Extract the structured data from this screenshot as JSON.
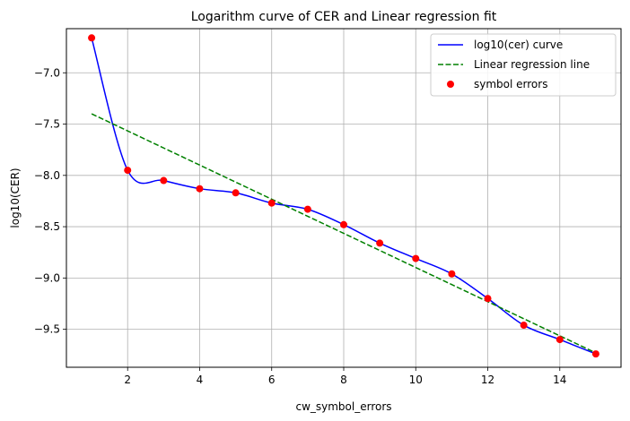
{
  "chart_data": {
    "type": "line",
    "title": "Logarithm curve of CER and Linear regression fit",
    "xlabel": "cw_symbol_errors",
    "ylabel": "log10(CER)",
    "xlim": [
      0.3,
      15.7
    ],
    "ylim": [
      -9.87,
      -6.57
    ],
    "x_ticks": [
      2,
      4,
      6,
      8,
      10,
      12,
      14
    ],
    "x_tick_labels": [
      "2",
      "4",
      "6",
      "8",
      "10",
      "12",
      "14"
    ],
    "y_ticks": [
      -9.5,
      -9.0,
      -8.5,
      -8.0,
      -7.5,
      -7.0
    ],
    "y_tick_labels": [
      "−9.5",
      "−9.0",
      "−8.5",
      "−8.0",
      "−7.5",
      "−7.0"
    ],
    "grid": true,
    "legend_position": "top-right",
    "series": [
      {
        "name": "log10(cer) curve",
        "kind": "smooth-line",
        "color": "#0000ff",
        "x": [
          1,
          2,
          3,
          4,
          5,
          6,
          7,
          8,
          9,
          10,
          11,
          12,
          13,
          14,
          15
        ],
        "y": [
          -6.66,
          -7.95,
          -8.05,
          -8.13,
          -8.17,
          -8.27,
          -8.33,
          -8.48,
          -8.66,
          -8.81,
          -8.96,
          -9.2,
          -9.46,
          -9.6,
          -9.74
        ]
      },
      {
        "name": "Linear regression line",
        "kind": "dashed-line",
        "color": "#008000",
        "x": [
          1,
          15
        ],
        "y": [
          -7.4,
          -9.73
        ]
      },
      {
        "name": "symbol errors",
        "kind": "scatter",
        "color": "#ff0000",
        "x": [
          1,
          2,
          3,
          4,
          5,
          6,
          7,
          8,
          9,
          10,
          11,
          12,
          13,
          14,
          15
        ],
        "y": [
          -6.66,
          -7.95,
          -8.05,
          -8.13,
          -8.17,
          -8.27,
          -8.33,
          -8.48,
          -8.66,
          -8.81,
          -8.96,
          -9.2,
          -9.46,
          -9.6,
          -9.74
        ]
      }
    ]
  }
}
